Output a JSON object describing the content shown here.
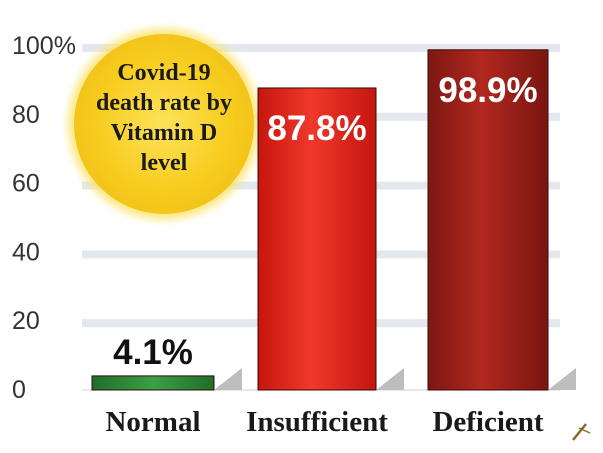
{
  "chart_data": {
    "type": "bar",
    "title_lines": [
      "Covid-19",
      "death rate by",
      "Vitamin D",
      "level"
    ],
    "categories": [
      "Normal",
      "Insufficient",
      "Deficient"
    ],
    "values": [
      4.1,
      87.8,
      98.9
    ],
    "data_labels": [
      "4.1%",
      "87.8%",
      "98.9%"
    ],
    "y_ticks": [
      "100%",
      "80",
      "60",
      "40",
      "20",
      "0"
    ],
    "y_tick_values": [
      100,
      80,
      60,
      40,
      20,
      0
    ],
    "ylim": [
      0,
      100
    ],
    "grid": true,
    "colors": {
      "normal": "#2e8b3a",
      "insufficient": "#e0251b",
      "deficient": "#a3221c",
      "badge": "#f9d12a",
      "grid_band": "#e3e8ef",
      "shadow": "#bdbdbd"
    }
  }
}
